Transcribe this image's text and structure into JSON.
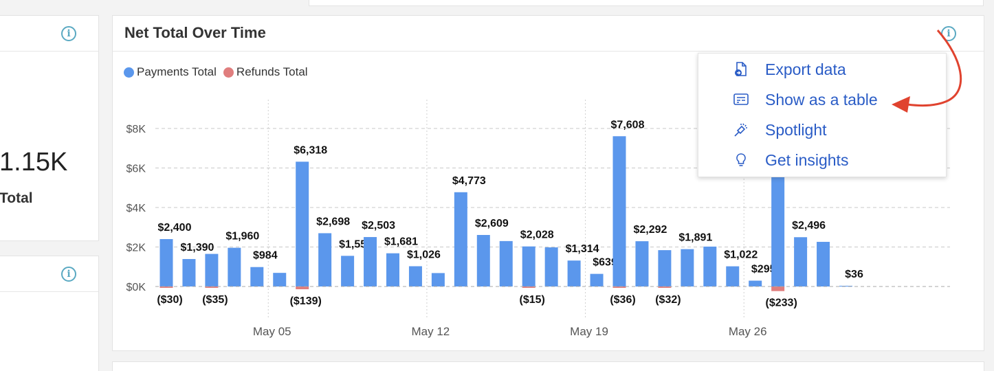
{
  "kpi_card": {
    "value": "1.15K",
    "label": "Total",
    "info_icon": "info-icon"
  },
  "small_card": {
    "info_icon": "info-icon"
  },
  "chart_card": {
    "title": "Net Total Over Time",
    "info_icon": "info-icon",
    "legend": [
      {
        "label": "Payments Total",
        "color": "#5b97ec"
      },
      {
        "label": "Refunds Total",
        "color": "#e07e7e"
      }
    ]
  },
  "menu": {
    "items": [
      {
        "label": "Export data",
        "icon": "export-file-icon"
      },
      {
        "label": "Show as a table",
        "icon": "table-view-icon"
      },
      {
        "label": "Spotlight",
        "icon": "spotlight-icon"
      },
      {
        "label": "Get insights",
        "icon": "lightbulb-icon"
      }
    ]
  },
  "annotation": {
    "arrow_color": "#e0432f"
  },
  "chart_data": {
    "type": "bar",
    "ylim": [
      0,
      9200
    ],
    "y_ticks": [
      "$0K",
      "$2K",
      "$4K",
      "$6K",
      "$8K"
    ],
    "y_tick_values": [
      0,
      2000,
      4000,
      6000,
      8000
    ],
    "x_tick_labels": [
      "May 05",
      "May 12",
      "May 19",
      "May 26"
    ],
    "x_tick_bar_index": [
      5,
      12,
      19,
      26
    ],
    "grid": true,
    "legend_position": "top-left",
    "series": [
      {
        "name": "Payments Total",
        "color": "#5b97ec",
        "values": [
          2400,
          1390,
          1650,
          1960,
          984,
          690,
          6318,
          2698,
          1552,
          2503,
          1681,
          1026,
          680,
          4773,
          2609,
          2300,
          2028,
          1980,
          1314,
          639,
          7608,
          2292,
          1840,
          1891,
          2020,
          1022,
          295,
          5600,
          2496,
          2260,
          36
        ],
        "labels": [
          "$2,400",
          "$1,390",
          "",
          "$1,960",
          "$984",
          "",
          "$6,318",
          "$2,698",
          "$1,552",
          "$2,503",
          "$1,681",
          "$1,026",
          "",
          "$4,773",
          "$2,609",
          "",
          "$2,028",
          "",
          "$1,314",
          "$639",
          "$7,608",
          "$2,292",
          "",
          "$1,891",
          "",
          "$1,022",
          "$295",
          "",
          "$2,496",
          "",
          "$36"
        ]
      },
      {
        "name": "Refunds Total",
        "color": "#e07e7e",
        "values": [
          -30,
          0,
          -35,
          0,
          0,
          0,
          -139,
          0,
          0,
          0,
          0,
          0,
          0,
          0,
          0,
          0,
          -15,
          0,
          0,
          0,
          -36,
          0,
          -32,
          0,
          0,
          0,
          0,
          -233,
          0,
          0,
          0
        ],
        "labels": [
          "($30)",
          "",
          "($35)",
          "",
          "",
          "",
          "($139)",
          "",
          "",
          "",
          "",
          "",
          "",
          "",
          "",
          "",
          "($15)",
          "",
          "",
          "",
          "($36)",
          "",
          "($32)",
          "",
          "",
          "",
          "",
          "($233)",
          "",
          "",
          ""
        ]
      }
    ]
  }
}
